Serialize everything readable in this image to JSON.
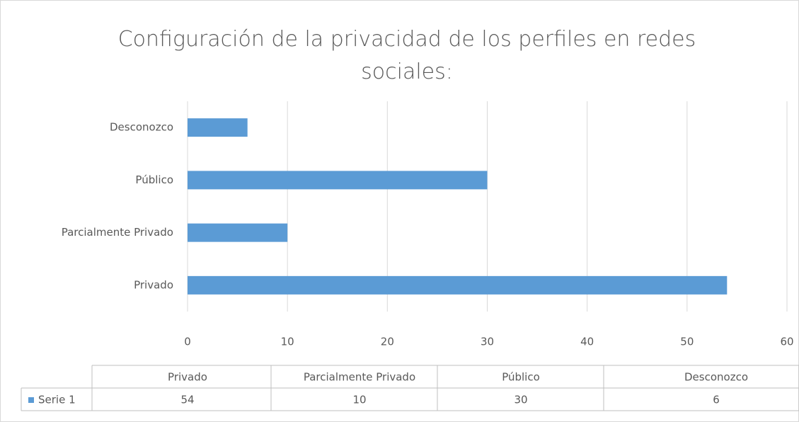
{
  "chart_data": {
    "type": "bar",
    "orientation": "horizontal",
    "title": "Configuración de la privacidad de los perfiles en redes sociales:",
    "categories": [
      "Privado",
      "Parcialmente Privado",
      "Público",
      "Desconozco"
    ],
    "series": [
      {
        "name": "Serie 1",
        "color": "#5b9bd5",
        "values": [
          54,
          10,
          30,
          6
        ]
      }
    ],
    "xlim": [
      0,
      60
    ],
    "xticks": [
      0,
      10,
      20,
      30,
      40,
      50,
      60
    ],
    "grid": true,
    "data_table": true
  }
}
